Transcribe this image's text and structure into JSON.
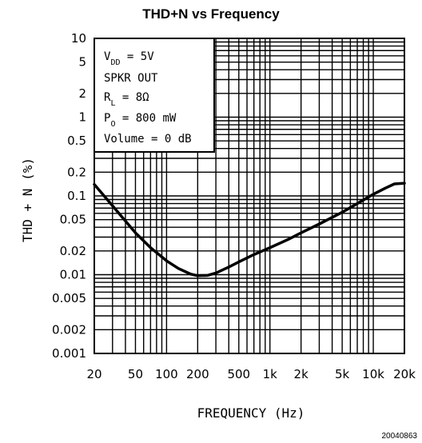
{
  "chart_data": {
    "type": "line",
    "title": "THD+N vs Frequency",
    "xlabel": "FREQUENCY (Hz)",
    "ylabel": "THD + N (%)",
    "xscale": "log",
    "yscale": "log",
    "xlim": [
      20,
      20000
    ],
    "ylim": [
      0.001,
      10
    ],
    "grid": true,
    "x_ticks": [
      {
        "v": 20,
        "label": "20"
      },
      {
        "v": 50,
        "label": "50"
      },
      {
        "v": 100,
        "label": "100"
      },
      {
        "v": 200,
        "label": "200"
      },
      {
        "v": 500,
        "label": "500"
      },
      {
        "v": 1000,
        "label": "1k"
      },
      {
        "v": 2000,
        "label": "2k"
      },
      {
        "v": 5000,
        "label": "5k"
      },
      {
        "v": 10000,
        "label": "10k"
      },
      {
        "v": 20000,
        "label": "20k"
      }
    ],
    "y_ticks": [
      {
        "v": 10,
        "label": "10"
      },
      {
        "v": 5,
        "label": "5"
      },
      {
        "v": 2,
        "label": "2"
      },
      {
        "v": 1,
        "label": "1"
      },
      {
        "v": 0.5,
        "label": "0.5"
      },
      {
        "v": 0.2,
        "label": "0.2"
      },
      {
        "v": 0.1,
        "label": "0.1"
      },
      {
        "v": 0.05,
        "label": "0.05"
      },
      {
        "v": 0.02,
        "label": "0.02"
      },
      {
        "v": 0.01,
        "label": "0.01"
      },
      {
        "v": 0.005,
        "label": "0.005"
      },
      {
        "v": 0.002,
        "label": "0.002"
      },
      {
        "v": 0.001,
        "label": "0.001"
      }
    ],
    "annotation_lines": [
      "V_DD = 5V",
      "SPKR OUT",
      "R_L = 8Ω",
      "P_O = 800 mW",
      "Volume = 0 dB"
    ],
    "series": [
      {
        "x": [
          20,
          30,
          40,
          50,
          70,
          100,
          130,
          170,
          200,
          250,
          300,
          400,
          500,
          700,
          1000,
          1500,
          2000,
          3000,
          5000,
          7000,
          10000,
          13000,
          16000,
          20000
        ],
        "y": [
          0.14,
          0.075,
          0.048,
          0.034,
          0.022,
          0.015,
          0.012,
          0.0102,
          0.0097,
          0.0098,
          0.0105,
          0.0125,
          0.0145,
          0.018,
          0.022,
          0.028,
          0.034,
          0.044,
          0.062,
          0.08,
          0.105,
          0.125,
          0.142,
          0.145
        ]
      }
    ]
  },
  "figure_id": "20040863"
}
